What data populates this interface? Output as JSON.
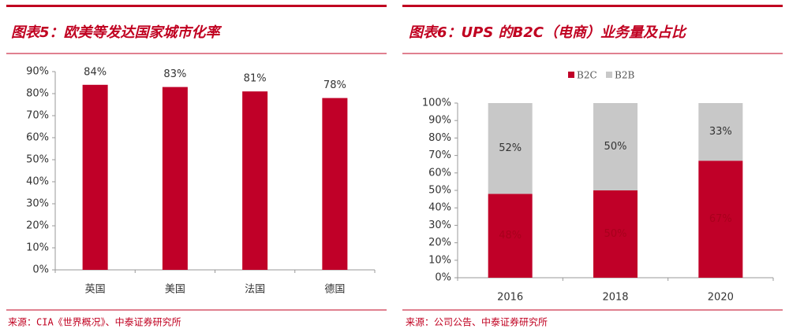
{
  "chart_data": [
    {
      "type": "bar",
      "title": "图表5：欧美等发达国家城市化率",
      "categories": [
        "英国",
        "美国",
        "法国",
        "德国"
      ],
      "values": [
        84,
        83,
        81,
        78
      ],
      "value_labels": [
        "84%",
        "83%",
        "81%",
        "78%"
      ],
      "color": "#c00028",
      "ylim": [
        0,
        90
      ],
      "yticks": [
        {
          "value": 0,
          "label": "0%"
        },
        {
          "value": 10,
          "label": "10%"
        },
        {
          "value": 20,
          "label": "20%"
        },
        {
          "value": 30,
          "label": "30%"
        },
        {
          "value": 40,
          "label": "40%"
        },
        {
          "value": 50,
          "label": "50%"
        },
        {
          "value": 60,
          "label": "60%"
        },
        {
          "value": 70,
          "label": "70%"
        },
        {
          "value": 80,
          "label": "80%"
        },
        {
          "value": 90,
          "label": "90%"
        }
      ],
      "source": "来源：CIA《世界概况》、中泰证券研究所"
    },
    {
      "type": "stacked_bar",
      "title": "图表6：UPS 的B2C（电商）业务量及占比",
      "categories": [
        "2016",
        "2018",
        "2020"
      ],
      "series": [
        {
          "name": "B2C",
          "color": "#c00028",
          "values": [
            48,
            50,
            67
          ],
          "value_labels": [
            "48%",
            "50%",
            "67%"
          ]
        },
        {
          "name": "B2B",
          "color": "#c8c8c8",
          "values": [
            52,
            50,
            33
          ],
          "value_labels": [
            "52%",
            "50%",
            "33%"
          ]
        }
      ],
      "ylim": [
        0,
        100
      ],
      "yticks": [
        {
          "value": 0,
          "label": "0%"
        },
        {
          "value": 10,
          "label": "10%"
        },
        {
          "value": 20,
          "label": "20%"
        },
        {
          "value": 30,
          "label": "30%"
        },
        {
          "value": 40,
          "label": "40%"
        },
        {
          "value": 50,
          "label": "50%"
        },
        {
          "value": 60,
          "label": "60%"
        },
        {
          "value": 70,
          "label": "70%"
        },
        {
          "value": 80,
          "label": "80%"
        },
        {
          "value": 90,
          "label": "90%"
        },
        {
          "value": 100,
          "label": "100%"
        }
      ],
      "legend": "top",
      "source": "来源：公司公告、中泰证券研究所"
    }
  ]
}
